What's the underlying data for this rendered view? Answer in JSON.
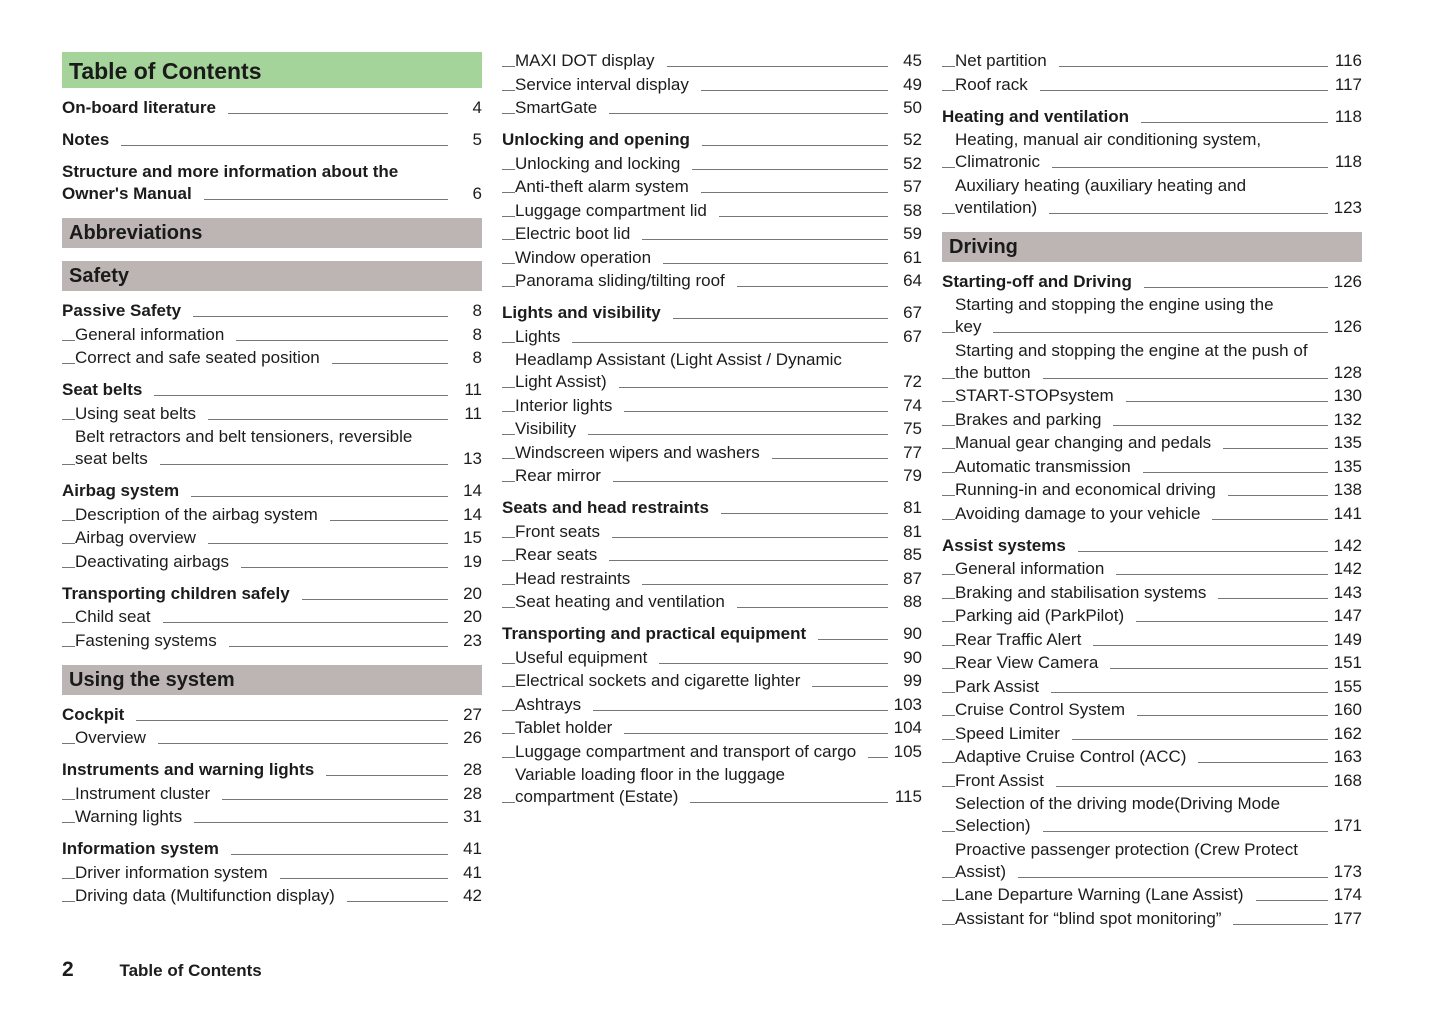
{
  "columns": [
    {
      "items": [
        {
          "type": "title",
          "text": "Table of Contents"
        },
        {
          "type": "h",
          "text": "On-board literature",
          "page": "4"
        },
        {
          "type": "h",
          "text": "Notes",
          "page": "5"
        },
        {
          "type": "h",
          "text": "Structure and more information about the Owner's Manual",
          "page": "6"
        },
        {
          "type": "section",
          "text": "Abbreviations"
        },
        {
          "type": "section",
          "text": "Safety"
        },
        {
          "type": "h",
          "text": "Passive Safety",
          "page": "8"
        },
        {
          "type": "s",
          "text": "General information",
          "page": "8"
        },
        {
          "type": "s",
          "text": "Correct and safe seated position",
          "page": "8"
        },
        {
          "type": "h",
          "text": "Seat belts",
          "page": "11"
        },
        {
          "type": "s",
          "text": "Using seat belts",
          "page": "11"
        },
        {
          "type": "s",
          "text": "Belt retractors and belt tensioners, reversible seat belts",
          "page": "13"
        },
        {
          "type": "h",
          "text": "Airbag system",
          "page": "14"
        },
        {
          "type": "s",
          "text": "Description of the airbag system",
          "page": "14"
        },
        {
          "type": "s",
          "text": "Airbag overview",
          "page": "15"
        },
        {
          "type": "s",
          "text": "Deactivating airbags",
          "page": "19"
        },
        {
          "type": "h",
          "text": "Transporting children safely",
          "page": "20"
        },
        {
          "type": "s",
          "text": "Child seat",
          "page": "20"
        },
        {
          "type": "s",
          "text": "Fastening systems",
          "page": "23"
        },
        {
          "type": "section",
          "text": "Using the system"
        },
        {
          "type": "h",
          "text": "Cockpit",
          "page": "27"
        },
        {
          "type": "s",
          "text": "Overview",
          "page": "26"
        },
        {
          "type": "h",
          "text": "Instruments and warning lights",
          "page": "28"
        },
        {
          "type": "s",
          "text": "Instrument cluster",
          "page": "28"
        },
        {
          "type": "s",
          "text": "Warning lights",
          "page": "31"
        },
        {
          "type": "h",
          "text": "Information system",
          "page": "41"
        },
        {
          "type": "s",
          "text": "Driver information system",
          "page": "41"
        },
        {
          "type": "s",
          "text": "Driving data (Multifunction display)",
          "page": "42"
        }
      ]
    },
    {
      "items": [
        {
          "type": "s",
          "text": "MAXI DOT display",
          "page": "45"
        },
        {
          "type": "s",
          "text": "Service interval display",
          "page": "49"
        },
        {
          "type": "s",
          "text": "SmartGate",
          "page": "50"
        },
        {
          "type": "h",
          "text": "Unlocking and opening",
          "page": "52"
        },
        {
          "type": "s",
          "text": "Unlocking and locking",
          "page": "52"
        },
        {
          "type": "s",
          "text": "Anti-theft alarm system",
          "page": "57"
        },
        {
          "type": "s",
          "text": "Luggage compartment lid",
          "page": "58"
        },
        {
          "type": "s",
          "text": "Electric boot lid",
          "page": "59"
        },
        {
          "type": "s",
          "text": "Window operation",
          "page": "61"
        },
        {
          "type": "s",
          "text": "Panorama sliding/tilting roof",
          "page": "64"
        },
        {
          "type": "h",
          "text": "Lights and visibility",
          "page": "67"
        },
        {
          "type": "s",
          "text": "Lights",
          "page": "67"
        },
        {
          "type": "s",
          "text": "Headlamp Assistant (Light Assist / Dynamic Light Assist)",
          "page": "72"
        },
        {
          "type": "s",
          "text": "Interior lights",
          "page": "74"
        },
        {
          "type": "s",
          "text": "Visibility",
          "page": "75"
        },
        {
          "type": "s",
          "text": "Windscreen wipers and washers",
          "page": "77"
        },
        {
          "type": "s",
          "text": "Rear mirror",
          "page": "79"
        },
        {
          "type": "h",
          "text": "Seats and head restraints",
          "page": "81"
        },
        {
          "type": "s",
          "text": "Front seats",
          "page": "81"
        },
        {
          "type": "s",
          "text": "Rear seats",
          "page": "85"
        },
        {
          "type": "s",
          "text": "Head restraints",
          "page": "87"
        },
        {
          "type": "s",
          "text": "Seat heating and ventilation",
          "page": "88"
        },
        {
          "type": "h",
          "text": "Transporting and practical equipment",
          "page": "90"
        },
        {
          "type": "s",
          "text": "Useful equipment",
          "page": "90"
        },
        {
          "type": "s",
          "text": "Electrical sockets and cigarette lighter",
          "page": "99"
        },
        {
          "type": "s",
          "text": "Ashtrays",
          "page": "103"
        },
        {
          "type": "s",
          "text": "Tablet holder",
          "page": "104"
        },
        {
          "type": "s",
          "text": "Luggage compartment and transport of cargo",
          "page": "105"
        },
        {
          "type": "s",
          "text": "Variable loading floor in the luggage compartment (Estate)",
          "page": "115"
        }
      ]
    },
    {
      "items": [
        {
          "type": "s",
          "text": "Net partition",
          "page": "116"
        },
        {
          "type": "s",
          "text": "Roof rack",
          "page": "117"
        },
        {
          "type": "h",
          "text": "Heating and ventilation",
          "page": "118"
        },
        {
          "type": "s",
          "text": "Heating, manual air conditioning system, Climatronic",
          "page": "118"
        },
        {
          "type": "s",
          "text": "Auxiliary heating (auxiliary heating and ventilation)",
          "page": "123"
        },
        {
          "type": "section",
          "text": "Driving"
        },
        {
          "type": "h",
          "text": "Starting-off and Driving",
          "page": "126"
        },
        {
          "type": "s",
          "text": "Starting and stopping the engine using the key",
          "page": "126"
        },
        {
          "type": "s",
          "text": "Starting and stopping the engine at the push of the button",
          "page": "128"
        },
        {
          "type": "s",
          "text": "START-STOPsystem",
          "page": "130"
        },
        {
          "type": "s",
          "text": "Brakes and parking",
          "page": "132"
        },
        {
          "type": "s",
          "text": "Manual gear changing and pedals",
          "page": "135"
        },
        {
          "type": "s",
          "text": "Automatic transmission",
          "page": "135"
        },
        {
          "type": "s",
          "text": "Running-in and economical driving",
          "page": "138"
        },
        {
          "type": "s",
          "text": "Avoiding damage to your vehicle",
          "page": "141"
        },
        {
          "type": "h",
          "text": "Assist systems",
          "page": "142"
        },
        {
          "type": "s",
          "text": "General information",
          "page": "142"
        },
        {
          "type": "s",
          "text": "Braking and stabilisation systems",
          "page": "143"
        },
        {
          "type": "s",
          "text": "Parking aid (ParkPilot)",
          "page": "147"
        },
        {
          "type": "s",
          "text": "Rear Traffic Alert",
          "page": "149"
        },
        {
          "type": "s",
          "text": "Rear View Camera",
          "page": "151"
        },
        {
          "type": "s",
          "text": "Park Assist",
          "page": "155"
        },
        {
          "type": "s",
          "text": "Cruise Control System",
          "page": "160"
        },
        {
          "type": "s",
          "text": "Speed Limiter",
          "page": "162"
        },
        {
          "type": "s",
          "text": "Adaptive Cruise Control (ACC)",
          "page": "163"
        },
        {
          "type": "s",
          "text": "Front Assist",
          "page": "168"
        },
        {
          "type": "s",
          "text": "Selection of the driving mode(Driving Mode Selection)",
          "page": "171"
        },
        {
          "type": "s",
          "text": "Proactive passenger protection (Crew Protect Assist)",
          "page": "173"
        },
        {
          "type": "s",
          "text": "Lane Departure Warning (Lane Assist)",
          "page": "174"
        },
        {
          "type": "s",
          "text": "Assistant for “blind spot monitoring”",
          "page": "177"
        }
      ]
    }
  ],
  "footer": {
    "page_number": "2",
    "label": "Table of Contents"
  },
  "colors": {
    "title_bg": "#a5d49b",
    "section_bg": "#bdb5b3"
  }
}
